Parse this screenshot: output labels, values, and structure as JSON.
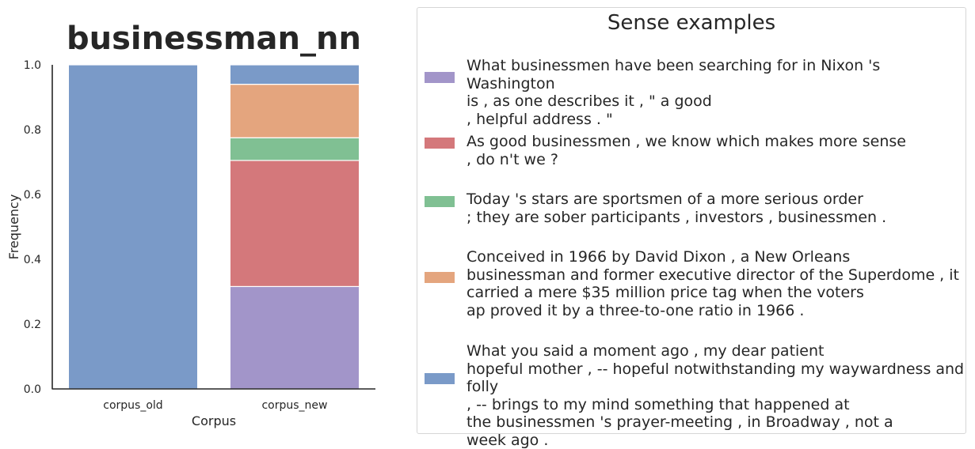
{
  "chart_data": {
    "type": "bar",
    "stacked": true,
    "title": "businessman_nn",
    "xlabel": "Corpus",
    "ylabel": "Frequency",
    "ylim": [
      0,
      1.0
    ],
    "yticks": [
      "0.0",
      "0.2",
      "0.4",
      "0.6",
      "0.8",
      "1.0"
    ],
    "categories": [
      "corpus_old",
      "corpus_new"
    ],
    "grid": false,
    "series": [
      {
        "color": "#a295c9",
        "values": [
          0.0,
          0.316
        ]
      },
      {
        "color": "#d4787b",
        "values": [
          0.0,
          0.389
        ]
      },
      {
        "color": "#80c093",
        "values": [
          0.0,
          0.07
        ]
      },
      {
        "color": "#e4a57e",
        "values": [
          0.0,
          0.165
        ]
      },
      {
        "color": "#7a9ac8",
        "values": [
          1.0,
          0.06
        ]
      }
    ]
  },
  "legend": {
    "title": "Sense examples",
    "position": "right",
    "entries": [
      {
        "color": "#a295c9",
        "text": "What businessmen have been searching for in Nixon 's Washington\nis , as one describes it , \" a good\n, helpful address . \""
      },
      {
        "color": "#d4787b",
        "text": "As good businessmen , we know which makes more sense\n, do n't we ?"
      },
      {
        "color": "#80c093",
        "text": "Today 's stars are sportsmen of a more serious order\n; they are sober participants , investors , businessmen ."
      },
      {
        "color": "#e4a57e",
        "text": "Conceived in 1966 by David Dixon , a New Orleans\nbusinessman and former executive director of the Superdome , it\ncarried a mere $35 million price tag when the voters\nap proved it by a three-to-one ratio in 1966 ."
      },
      {
        "color": "#7a9ac8",
        "text": "What you said a moment ago , my dear patient\nhopeful mother , -- hopeful notwithstanding my waywardness and folly\n, -- brings to my mind something that happened at\nthe businessmen 's prayer-meeting , in Broadway , not a\nweek ago ."
      }
    ]
  }
}
